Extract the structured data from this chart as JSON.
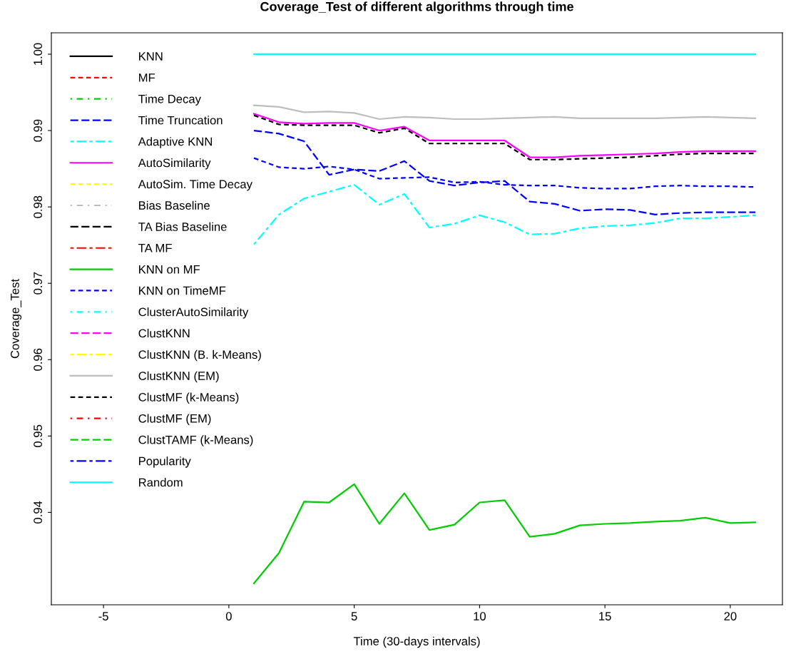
{
  "chart_data": {
    "type": "line",
    "title": "Coverage_Test of different algorithms through time",
    "xlabel": "Time (30-days intervals)",
    "ylabel": "Coverage_Test",
    "x": [
      1,
      2,
      3,
      4,
      5,
      6,
      7,
      8,
      9,
      10,
      11,
      12,
      13,
      14,
      15,
      16,
      17,
      18,
      19,
      20,
      21
    ],
    "xlim": [
      -7.08,
      22.08
    ],
    "xticks": [
      -5,
      0,
      5,
      10,
      15,
      20
    ],
    "ylim": [
      0.9279,
      1.0028
    ],
    "yticks": [
      {
        "value": 0.94,
        "label": "0.94"
      },
      {
        "value": 0.95,
        "label": "0.95"
      },
      {
        "value": 0.96,
        "label": "0.96"
      },
      {
        "value": 0.97,
        "label": "0.97"
      },
      {
        "value": 0.98,
        "label": "0.98"
      },
      {
        "value": 0.99,
        "label": "0.99"
      },
      {
        "value": 1.0,
        "label": "1.00"
      }
    ],
    "grid": false,
    "legend": "top left",
    "marker": "none",
    "series": [
      {
        "name": "KNN",
        "color": "#000000",
        "line_style": "solid",
        "values": [
          null,
          null,
          null,
          null,
          null,
          null,
          null,
          null,
          null,
          null,
          null,
          null,
          null,
          null,
          null,
          null,
          null,
          null,
          null,
          null,
          null
        ]
      },
      {
        "name": "MF",
        "color": "#ff0000",
        "line_style": "dashed",
        "values": [
          null,
          null,
          null,
          null,
          null,
          null,
          null,
          null,
          null,
          null,
          null,
          null,
          null,
          null,
          null,
          null,
          null,
          null,
          null,
          null,
          null
        ]
      },
      {
        "name": "Time Decay",
        "color": "#00cd00",
        "line_style": "dashdot",
        "values": [
          null,
          null,
          null,
          null,
          null,
          null,
          null,
          null,
          null,
          null,
          null,
          null,
          null,
          null,
          null,
          null,
          null,
          null,
          null,
          null,
          null
        ]
      },
      {
        "name": "Time Truncation",
        "color": "#0000ff",
        "line_style": "longdash",
        "values": [
          0.99,
          0.9896,
          0.9886,
          0.9842,
          0.9849,
          0.9847,
          0.986,
          0.9834,
          0.9828,
          0.9832,
          0.9834,
          0.9807,
          0.9804,
          0.9795,
          0.9797,
          0.9796,
          0.979,
          0.9792,
          0.9793,
          0.9793,
          0.9793
        ]
      },
      {
        "name": "Adaptive KNN",
        "color": "#00ffff",
        "line_style": "twodash",
        "values": [
          0.9751,
          0.979,
          0.9811,
          0.982,
          0.9829,
          0.9803,
          0.9817,
          0.9773,
          0.9778,
          0.9789,
          0.978,
          0.9764,
          0.9765,
          0.9772,
          0.9775,
          0.9776,
          0.9779,
          0.9785,
          0.9785,
          0.9787,
          0.9789
        ]
      },
      {
        "name": "AutoSimilarity",
        "color": "#ff00ff",
        "line_style": "solid",
        "values": [
          0.9922,
          0.9911,
          0.9909,
          0.991,
          0.991,
          0.99,
          0.9905,
          0.9887,
          0.9887,
          0.9887,
          0.9887,
          0.9865,
          0.9865,
          0.9867,
          0.9868,
          0.9869,
          0.987,
          0.9872,
          0.9873,
          0.9873,
          0.9873
        ]
      },
      {
        "name": "AutoSim. Time Decay",
        "color": "#ffff00",
        "line_style": "dashed",
        "values": [
          null,
          null,
          null,
          null,
          null,
          null,
          null,
          null,
          null,
          null,
          null,
          null,
          null,
          null,
          null,
          null,
          null,
          null,
          null,
          null,
          null
        ]
      },
      {
        "name": "Bias Baseline",
        "color": "#bebebe",
        "line_style": "dashdot",
        "values": [
          null,
          null,
          null,
          null,
          null,
          null,
          null,
          null,
          null,
          null,
          null,
          null,
          null,
          null,
          null,
          null,
          null,
          null,
          null,
          null,
          null
        ]
      },
      {
        "name": "TA Bias Baseline",
        "color": "#000000",
        "line_style": "longdash",
        "values": [
          null,
          null,
          null,
          null,
          null,
          null,
          null,
          null,
          null,
          null,
          null,
          null,
          null,
          null,
          null,
          null,
          null,
          null,
          null,
          null,
          null
        ]
      },
      {
        "name": "TA MF",
        "color": "#ff0000",
        "line_style": "twodash",
        "values": [
          null,
          null,
          null,
          null,
          null,
          null,
          null,
          null,
          null,
          null,
          null,
          null,
          null,
          null,
          null,
          null,
          null,
          null,
          null,
          null,
          null
        ]
      },
      {
        "name": "KNN on MF",
        "color": "#00cd00",
        "line_style": "solid",
        "values": [
          0.9307,
          0.9347,
          0.9414,
          0.9413,
          0.9437,
          0.9385,
          0.9425,
          0.9377,
          0.9384,
          0.9413,
          0.9416,
          0.9368,
          0.9372,
          0.9383,
          0.9385,
          0.9386,
          0.9388,
          0.9389,
          0.9393,
          0.9386,
          0.9387
        ]
      },
      {
        "name": "KNN on TimeMF",
        "color": "#0000ff",
        "line_style": "dashed",
        "values": [
          0.9864,
          0.9852,
          0.985,
          0.9853,
          0.9849,
          0.9837,
          0.9838,
          0.9839,
          0.9832,
          0.9833,
          0.9829,
          0.9828,
          0.9828,
          0.9825,
          0.9824,
          0.9824,
          0.9827,
          0.9828,
          0.9827,
          0.9827,
          0.9826
        ]
      },
      {
        "name": "ClusterAutoSimilarity",
        "color": "#00ffff",
        "line_style": "dashdot",
        "values": [
          null,
          null,
          null,
          null,
          null,
          null,
          null,
          null,
          null,
          null,
          null,
          null,
          null,
          null,
          null,
          null,
          null,
          null,
          null,
          null,
          null
        ]
      },
      {
        "name": "ClustKNN",
        "color": "#ff00ff",
        "line_style": "longdash",
        "values": [
          null,
          null,
          null,
          null,
          null,
          null,
          null,
          null,
          null,
          null,
          null,
          null,
          null,
          null,
          null,
          null,
          null,
          null,
          null,
          null,
          null
        ]
      },
      {
        "name": "ClustKNN (B. k-Means)",
        "color": "#ffff00",
        "line_style": "twodash",
        "values": [
          null,
          null,
          null,
          null,
          null,
          null,
          null,
          null,
          null,
          null,
          null,
          null,
          null,
          null,
          null,
          null,
          null,
          null,
          null,
          null,
          null
        ]
      },
      {
        "name": "ClustKNN (EM)",
        "color": "#bebebe",
        "line_style": "solid",
        "values": [
          0.9933,
          0.9931,
          0.9924,
          0.9925,
          0.9923,
          0.9915,
          0.9918,
          0.9917,
          0.9915,
          0.9915,
          0.9916,
          0.9917,
          0.9918,
          0.9916,
          0.9916,
          0.9916,
          0.9916,
          0.9917,
          0.9918,
          0.9917,
          0.9916
        ]
      },
      {
        "name": "ClustMF (k-Means)",
        "color": "#000000",
        "line_style": "dashed",
        "values": [
          0.992,
          0.9908,
          0.9907,
          0.9907,
          0.9907,
          0.9897,
          0.9903,
          0.9883,
          0.9883,
          0.9883,
          0.9883,
          0.9862,
          0.9862,
          0.9863,
          0.9864,
          0.9865,
          0.9867,
          0.9869,
          0.987,
          0.987,
          0.987
        ]
      },
      {
        "name": "ClustMF (EM)",
        "color": "#ff0000",
        "line_style": "dashdot",
        "values": [
          null,
          null,
          null,
          null,
          null,
          null,
          null,
          null,
          null,
          null,
          null,
          null,
          null,
          null,
          null,
          null,
          null,
          null,
          null,
          null,
          null
        ]
      },
      {
        "name": "ClustTAMF (k-Means)",
        "color": "#00cd00",
        "line_style": "longdash",
        "values": [
          null,
          null,
          null,
          null,
          null,
          null,
          null,
          null,
          null,
          null,
          null,
          null,
          null,
          null,
          null,
          null,
          null,
          null,
          null,
          null,
          null
        ]
      },
      {
        "name": "Popularity",
        "color": "#0000ff",
        "line_style": "twodash",
        "values": [
          null,
          null,
          null,
          null,
          null,
          null,
          null,
          null,
          null,
          null,
          null,
          null,
          null,
          null,
          null,
          null,
          null,
          null,
          null,
          null,
          null
        ]
      },
      {
        "name": "Random",
        "color": "#00ffff",
        "line_style": "solid",
        "values": [
          1.0,
          1.0,
          1.0,
          1.0,
          1.0,
          1.0,
          1.0,
          1.0,
          1.0,
          1.0,
          1.0,
          1.0,
          1.0,
          1.0,
          1.0,
          1.0,
          1.0,
          1.0,
          1.0,
          1.0,
          1.0
        ]
      }
    ]
  }
}
